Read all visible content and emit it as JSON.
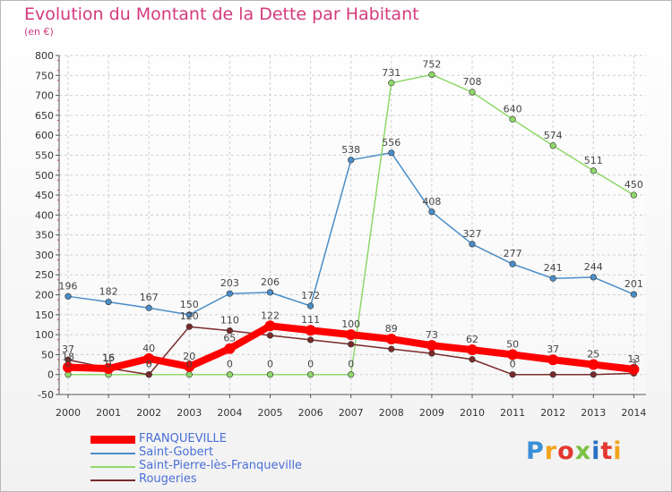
{
  "header": {
    "title": "Evolution du Montant de la Dette par Habitant",
    "unit": "(en €)"
  },
  "logo": {
    "text": "Proxiti",
    "colors": [
      "#3a8fd6",
      "#f2a51c",
      "#e2382f",
      "#7ac143",
      "#2b6fc4",
      "#e2382f",
      "#f2a51c"
    ]
  },
  "chart_data": {
    "type": "line",
    "x": [
      "2000",
      "2001",
      "2002",
      "2003",
      "2004",
      "2005",
      "2006",
      "2007",
      "2008",
      "2009",
      "2010",
      "2011",
      "2012",
      "2013",
      "2014"
    ],
    "ylim": [
      -50,
      800
    ],
    "yticks": [
      -50,
      0,
      50,
      100,
      150,
      200,
      250,
      300,
      350,
      400,
      450,
      500,
      550,
      600,
      650,
      700,
      750,
      800
    ],
    "grid": true,
    "legend_position": "bottom-left",
    "series": [
      {
        "name": "Saint-Gobert",
        "color": "#4a8dc8",
        "values": [
          196,
          182,
          167,
          150,
          203,
          206,
          172,
          538,
          556,
          408,
          327,
          277,
          241,
          244,
          201
        ],
        "labels": [
          "196",
          "182",
          "167",
          "150",
          "203",
          "206",
          "172",
          "538",
          "556",
          "408",
          "327",
          "277",
          "241",
          "244",
          "201"
        ]
      },
      {
        "name": "Saint-Pierre-lès-Franqueville",
        "color": "#8fd86a",
        "values": [
          0,
          0,
          0,
          0,
          0,
          0,
          0,
          0,
          731,
          752,
          708,
          640,
          574,
          511,
          450
        ],
        "labels": [
          "0",
          "0",
          "0",
          "0",
          "0",
          "0",
          "0",
          "0",
          "731",
          "752",
          "708",
          "640",
          "574",
          "511",
          "450"
        ]
      },
      {
        "name": "Rougeries",
        "color": "#7a2a2a",
        "values": [
          37,
          16,
          0,
          120,
          110,
          98,
          87,
          76,
          64,
          53,
          38,
          0,
          0,
          0,
          3
        ],
        "labels": [
          "37",
          "16",
          "0",
          "120",
          "110",
          "",
          "",
          "",
          "",
          "",
          "",
          "0",
          "",
          "",
          "3"
        ]
      },
      {
        "name": "FRANQUEVILLE",
        "color": "#ff0000",
        "values": [
          18,
          15,
          40,
          20,
          65,
          122,
          111,
          100,
          89,
          73,
          62,
          50,
          37,
          25,
          13
        ],
        "labels": [
          "18",
          "15",
          "40",
          "20",
          "65",
          "122",
          "111",
          "100",
          "89",
          "73",
          "62",
          "50",
          "37",
          "25",
          "13"
        ]
      }
    ]
  },
  "legend": {
    "items": [
      {
        "name": "FRANQUEVILLE",
        "color": "#ff0000",
        "label_color": "#4a6fd8",
        "thick": true
      },
      {
        "name": "Saint-Gobert",
        "color": "#4a8dc8",
        "label_color": "#4a6fd8",
        "thick": false
      },
      {
        "name": "Saint-Pierre-lès-Franqueville",
        "color": "#8fd86a",
        "label_color": "#4a6fd8",
        "thick": false
      },
      {
        "name": "Rougeries",
        "color": "#7a2a2a",
        "label_color": "#4a6fd8",
        "thick": false
      }
    ]
  }
}
